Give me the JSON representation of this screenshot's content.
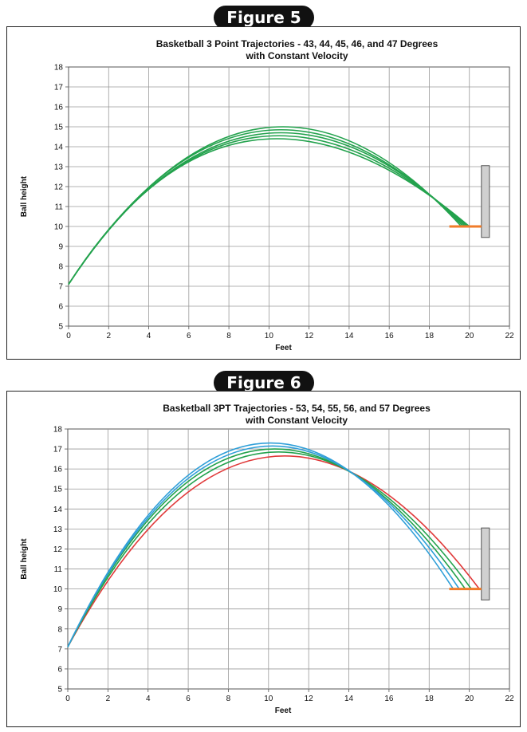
{
  "chart_data": [
    {
      "type": "line",
      "figure_label": "Figure 5",
      "title": "Basketball 3 Point Trajectories - 43, 44, 45, 46, and 47 Degrees",
      "subtitle": "with Constant Velocity",
      "xlabel": "Feet",
      "ylabel": "Ball height",
      "xlim": [
        0,
        22
      ],
      "ylim": [
        5,
        18
      ],
      "xticks": [
        "0",
        "2",
        "4",
        "6",
        "8",
        "10",
        "12",
        "14",
        "16",
        "18",
        "20",
        "22"
      ],
      "yticks": [
        "5",
        "6",
        "7",
        "8",
        "9",
        "10",
        "11",
        "12",
        "13",
        "14",
        "15",
        "16",
        "17",
        "18"
      ],
      "grid": true,
      "series": [
        {
          "color": "#23a24d",
          "launch": [
            0,
            7.1
          ],
          "apex": [
            10.4,
            14.4
          ],
          "end": [
            20.0,
            10.0
          ]
        },
        {
          "color": "#23a24d",
          "launch": [
            0,
            7.1
          ],
          "apex": [
            10.5,
            14.55
          ],
          "end": [
            19.9,
            10.0
          ]
        },
        {
          "color": "#23a24d",
          "launch": [
            0,
            7.1
          ],
          "apex": [
            10.6,
            14.7
          ],
          "end": [
            19.8,
            10.0
          ]
        },
        {
          "color": "#23a24d",
          "launch": [
            0,
            7.1
          ],
          "apex": [
            10.6,
            14.85
          ],
          "end": [
            19.7,
            10.0
          ]
        },
        {
          "color": "#23a24d",
          "launch": [
            0,
            7.1
          ],
          "apex": [
            10.7,
            15.0
          ],
          "end": [
            19.6,
            10.0
          ]
        }
      ],
      "rim": {
        "x": [
          19.0,
          20.6
        ],
        "y": 10.0,
        "color": "#f07c2a"
      },
      "backboard": {
        "x": [
          20.6,
          21.0
        ],
        "y": [
          9.45,
          13.05
        ],
        "color": "#d0d0d0"
      }
    },
    {
      "type": "line",
      "figure_label": "Figure 6",
      "title": "Basketball 3PT Trajectories - 53, 54, 55, 56, and 57 Degrees",
      "subtitle": "with Constant Velocity",
      "xlabel": "Feet",
      "ylabel": "Ball height",
      "xlim": [
        0,
        22
      ],
      "ylim": [
        5,
        18
      ],
      "xticks": [
        "0",
        "2",
        "4",
        "6",
        "8",
        "10",
        "12",
        "14",
        "16",
        "18",
        "20",
        "22"
      ],
      "yticks": [
        "5",
        "6",
        "7",
        "8",
        "9",
        "10",
        "11",
        "12",
        "13",
        "14",
        "15",
        "16",
        "17",
        "18"
      ],
      "grid": true,
      "series": [
        {
          "color": "#e03a3a",
          "launch": [
            0,
            7.1
          ],
          "apex": [
            10.8,
            16.65
          ],
          "end": [
            20.5,
            10.0
          ]
        },
        {
          "color": "#23a24d",
          "launch": [
            0,
            7.1
          ],
          "apex": [
            10.5,
            16.85
          ],
          "end": [
            20.1,
            10.0
          ]
        },
        {
          "color": "#23a24d",
          "launch": [
            0,
            7.1
          ],
          "apex": [
            10.3,
            17.0
          ],
          "end": [
            19.8,
            10.0
          ]
        },
        {
          "color": "#2f9fd8",
          "launch": [
            0,
            7.1
          ],
          "apex": [
            10.2,
            17.15
          ],
          "end": [
            19.5,
            10.0
          ]
        },
        {
          "color": "#2f9fd8",
          "launch": [
            0,
            7.1
          ],
          "apex": [
            10.1,
            17.3
          ],
          "end": [
            19.2,
            10.0
          ]
        }
      ],
      "rim": {
        "x": [
          19.0,
          20.6
        ],
        "y": 10.0,
        "color": "#f07c2a"
      },
      "backboard": {
        "x": [
          20.6,
          21.0
        ],
        "y": [
          9.45,
          13.05
        ],
        "color": "#d0d0d0"
      }
    }
  ]
}
